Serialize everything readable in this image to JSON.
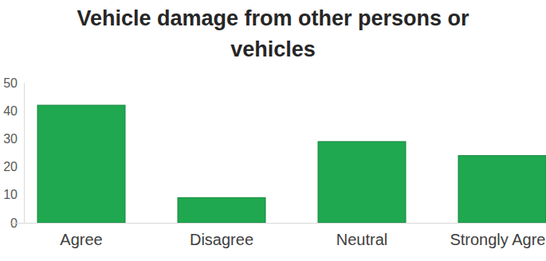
{
  "chart_data": {
    "type": "bar",
    "title": "Vehicle damage from other persons or vehicles",
    "categories": [
      "Agree",
      "Disagree",
      "Neutral",
      "Strongly Agree"
    ],
    "values": [
      42,
      9,
      29,
      24
    ],
    "color": "#1fa84f",
    "ylim": [
      0,
      50
    ],
    "yticks": [
      0,
      10,
      20,
      30,
      40,
      50
    ],
    "grid": false
  }
}
